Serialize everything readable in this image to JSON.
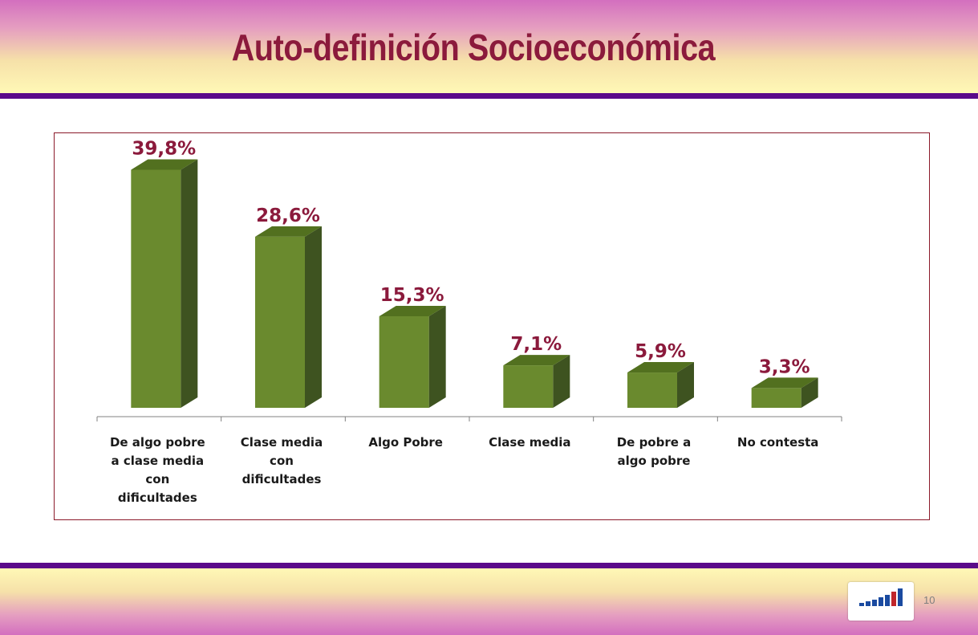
{
  "header": {
    "title": "Auto-definición  Socioeconómica"
  },
  "footer": {
    "page_number": "10"
  },
  "colors": {
    "bar_front": "#6a8a2e",
    "bar_side": "#3e5320",
    "bar_top": "#52701f",
    "label": "#8b1a3c",
    "rule": "#5a0a8a"
  },
  "chart_data": {
    "type": "bar",
    "categories": [
      [
        "De algo pobre",
        "a clase media",
        "con",
        "dificultades"
      ],
      [
        "Clase media",
        "con",
        "dificultades"
      ],
      [
        "Algo Pobre"
      ],
      [
        "Clase media"
      ],
      [
        "De pobre a",
        "algo pobre"
      ],
      [
        "No contesta"
      ]
    ],
    "values": [
      39.8,
      28.6,
      15.3,
      7.1,
      5.9,
      3.3
    ],
    "data_labels": [
      "39,8%",
      "28,6%",
      "15,3%",
      "7,1%",
      "5,9%",
      "3,3%"
    ],
    "title": "",
    "xlabel": "",
    "ylabel": "",
    "ylim": [
      0,
      40
    ],
    "grid": false,
    "three_d": true
  }
}
